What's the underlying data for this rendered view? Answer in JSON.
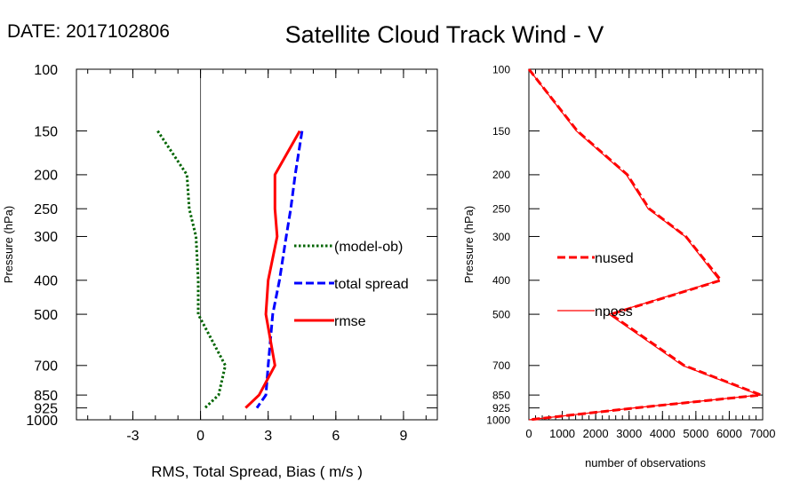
{
  "header": {
    "date_label": "DATE: 2017102806",
    "title": "Satellite Cloud Track Wind - V"
  },
  "colors": {
    "bias": "#006400",
    "spread": "#0000ff",
    "rmse": "#ff0000",
    "count": "#ff0000",
    "axis": "#000000"
  },
  "chart_data": [
    {
      "type": "line",
      "name": "stats-panel",
      "xlabel": "RMS, Total Spread, Bias ( m/s )",
      "ylabel": "Pressure (hPa)",
      "xlim": [
        -5.5,
        10.5
      ],
      "ylim": [
        1000,
        100
      ],
      "yscale": "log",
      "x_ticks": [
        -3,
        0,
        3,
        6,
        9
      ],
      "x_tick_labels": [
        "-3",
        "0",
        "3",
        "6",
        "9"
      ],
      "y_ticks": [
        100,
        150,
        200,
        250,
        300,
        400,
        500,
        700,
        850,
        925,
        1000
      ],
      "y_tick_labels": [
        "100",
        "150",
        "200",
        "250",
        "300",
        "400",
        "500",
        "700",
        "850",
        "925",
        "1000"
      ],
      "zero_line": 0,
      "legend_position": "center-right",
      "series": [
        {
          "name": "(model-ob)",
          "key": "bias",
          "style": "dotted",
          "points": [
            [
              -1.9,
              150
            ],
            [
              -0.6,
              200
            ],
            [
              -0.5,
              250
            ],
            [
              -0.2,
              300
            ],
            [
              -0.1,
              400
            ],
            [
              -0.1,
              500
            ],
            [
              1.1,
              700
            ],
            [
              0.8,
              850
            ],
            [
              0.2,
              925
            ]
          ]
        },
        {
          "name": "total spread",
          "key": "spread",
          "style": "dashed",
          "points": [
            [
              4.5,
              150
            ],
            [
              4.2,
              200
            ],
            [
              4.0,
              250
            ],
            [
              3.8,
              300
            ],
            [
              3.5,
              400
            ],
            [
              3.2,
              500
            ],
            [
              3.0,
              700
            ],
            [
              2.9,
              850
            ],
            [
              2.5,
              925
            ]
          ]
        },
        {
          "name": "rmse",
          "key": "rmse",
          "style": "solid",
          "points": [
            [
              4.4,
              150
            ],
            [
              3.3,
              200
            ],
            [
              3.3,
              250
            ],
            [
              3.4,
              300
            ],
            [
              3.0,
              400
            ],
            [
              2.9,
              500
            ],
            [
              3.3,
              700
            ],
            [
              2.6,
              850
            ],
            [
              2.0,
              925
            ]
          ]
        }
      ]
    },
    {
      "type": "line",
      "name": "count-panel",
      "xlabel": "number of observations",
      "ylabel": "Pressure (hPa)",
      "xlim": [
        0,
        7000
      ],
      "ylim": [
        1000,
        100
      ],
      "yscale": "log",
      "x_ticks": [
        0,
        1000,
        2000,
        3000,
        4000,
        5000,
        6000,
        7000
      ],
      "x_tick_labels": [
        "0",
        "1000",
        "2000",
        "3000",
        "4000",
        "5000",
        "6000",
        "7000"
      ],
      "y_ticks": [
        100,
        150,
        200,
        250,
        300,
        400,
        500,
        700,
        850,
        925,
        1000
      ],
      "y_tick_labels": [
        "100",
        "150",
        "200",
        "250",
        "300",
        "400",
        "500",
        "700",
        "850",
        "925",
        "1000"
      ],
      "legend_position": "center-left",
      "series": [
        {
          "name": "nused",
          "key": "count",
          "style": "dashed",
          "points": [
            [
              0,
              100
            ],
            [
              1450,
              150
            ],
            [
              2950,
              200
            ],
            [
              3600,
              250
            ],
            [
              4700,
              300
            ],
            [
              5750,
              400
            ],
            [
              2450,
              500
            ],
            [
              4650,
              700
            ],
            [
              6950,
              850
            ],
            [
              3200,
              925
            ],
            [
              0,
              1000
            ]
          ]
        },
        {
          "name": "nposs",
          "key": "count",
          "style": "solid",
          "points": [
            [
              0,
              100
            ],
            [
              1420,
              150
            ],
            [
              2920,
              200
            ],
            [
              3570,
              250
            ],
            [
              4680,
              300
            ],
            [
              5700,
              400
            ],
            [
              2400,
              500
            ],
            [
              4600,
              700
            ],
            [
              6900,
              850
            ],
            [
              3150,
              925
            ],
            [
              0,
              1000
            ]
          ]
        }
      ]
    }
  ]
}
